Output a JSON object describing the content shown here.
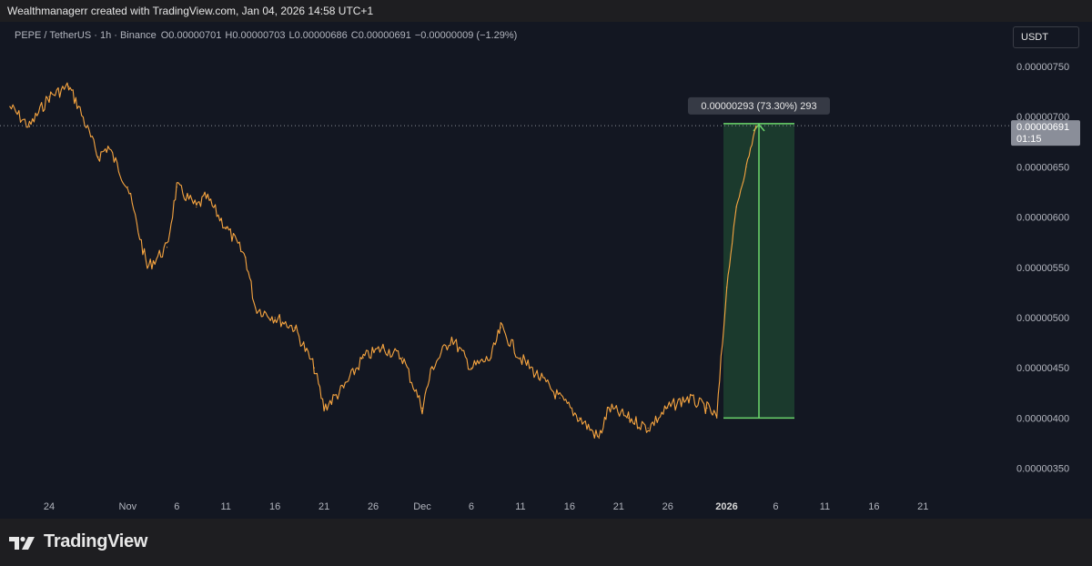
{
  "credit_line": "Wealthmanagerr created with TradingView.com, Jan 04, 2026 14:58 UTC+1",
  "header": {
    "symbol": "PEPE / TetherUS · 1h · Binance",
    "o_label": "O",
    "o_value": "0.00000701",
    "h_label": "H",
    "h_value": "0.00000703",
    "l_label": "L",
    "l_value": "0.00000686",
    "c_label": "C",
    "c_value": "0.00000691",
    "change": "−0.00000009 (−1.29%)"
  },
  "currency_button": "USDT",
  "brand": "TradingView",
  "price_tag": {
    "price": "0.00000691",
    "countdown": "01:15"
  },
  "measure": {
    "label": "0.00000293 (73.30%) 293",
    "from_price": 4e-06,
    "to_price": 6.93e-06
  },
  "colors": {
    "background": "#131722",
    "frame": "#1e1e21",
    "line": "#f7a540",
    "measure_fill": "#1f4732",
    "measure_line": "#6cd76c",
    "text": "#b2b5be"
  },
  "chart_data": {
    "type": "line",
    "title": "PEPE / TetherUS · 1h · Binance",
    "xlabel": "",
    "ylabel": "",
    "x_ticks": [
      "24",
      "Nov",
      "6",
      "11",
      "16",
      "21",
      "26",
      "Dec",
      "6",
      "11",
      "16",
      "21",
      "26",
      "2026",
      "6",
      "11",
      "16",
      "21"
    ],
    "y_ticks": [
      "0.00000750",
      "0.00000700",
      "0.00000650",
      "0.00000600",
      "0.00000550",
      "0.00000500",
      "0.00000450",
      "0.00000400",
      "0.00000350"
    ],
    "ylim": [
      3.2e-06,
      7.8e-06
    ],
    "grid": false,
    "series": [
      {
        "x": [
          "2025-10-20",
          "2025-10-22",
          "2025-10-24",
          "2025-10-26",
          "2025-10-27",
          "2025-10-29",
          "2025-10-30",
          "2025-11-01",
          "2025-11-03",
          "2025-11-05",
          "2025-11-06",
          "2025-11-08",
          "2025-11-09",
          "2025-11-11",
          "2025-11-13",
          "2025-11-14",
          "2025-11-16",
          "2025-11-18",
          "2025-11-20",
          "2025-11-21",
          "2025-11-23",
          "2025-11-25",
          "2025-11-27",
          "2025-11-29",
          "2025-12-01",
          "2025-12-02",
          "2025-12-04",
          "2025-12-06",
          "2025-12-08",
          "2025-12-09",
          "2025-12-11",
          "2025-12-13",
          "2025-12-15",
          "2025-12-17",
          "2025-12-19",
          "2025-12-20",
          "2025-12-22",
          "2025-12-24",
          "2025-12-26",
          "2025-12-28",
          "2025-12-30",
          "2025-12-31",
          "2026-01-01",
          "2026-01-02",
          "2026-01-03",
          "2026-01-04"
        ],
        "values": [
          7.1e-06,
          6.9e-06,
          7.2e-06,
          7.3e-06,
          7.1e-06,
          6.6e-06,
          6.7e-06,
          6.3e-06,
          5.5e-06,
          5.7e-06,
          6.3e-06,
          6.1e-06,
          6.2e-06,
          5.9e-06,
          5.6e-06,
          5.1e-06,
          5e-06,
          4.9e-06,
          4.5e-06,
          4.1e-06,
          4.3e-06,
          4.6e-06,
          4.7e-06,
          4.6e-06,
          4.1e-06,
          4.5e-06,
          4.8e-06,
          4.5e-06,
          4.6e-06,
          4.9e-06,
          4.6e-06,
          4.4e-06,
          4.2e-06,
          4e-06,
          3.8e-06,
          4.1e-06,
          4e-06,
          3.9e-06,
          4.1e-06,
          4.2e-06,
          4.1e-06,
          4e-06,
          5.3e-06,
          6.1e-06,
          6.5e-06,
          6.91e-06
        ]
      }
    ]
  }
}
